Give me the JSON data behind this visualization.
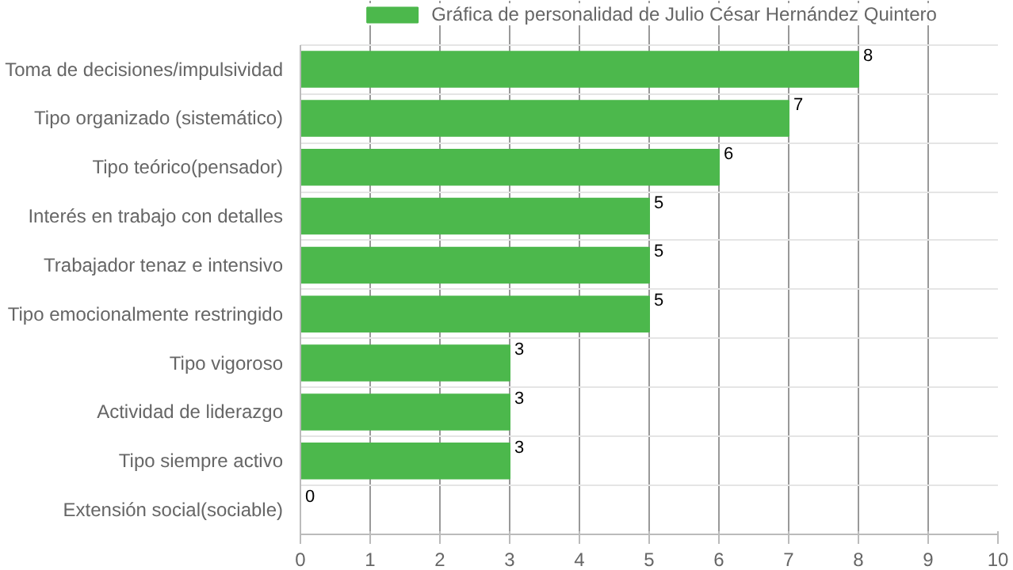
{
  "chart_data": {
    "type": "bar",
    "orientation": "horizontal",
    "categories": [
      "Toma de decisiones/impulsividad",
      "Tipo organizado (sistemático)",
      "Tipo teórico(pensador)",
      "Interés en trabajo con detalles",
      "Trabajador tenaz e intensivo",
      "Tipo emocionalmente restringido",
      "Tipo vigoroso",
      "Actividad de liderazgo",
      "Tipo siempre activo",
      "Extensión social(sociable)"
    ],
    "series": [
      {
        "name": "Gráfica de personalidad de Julio César Hernández Quintero",
        "color": "#4cb84c",
        "values": [
          8,
          7,
          6,
          5,
          5,
          5,
          3,
          3,
          3,
          0
        ]
      }
    ],
    "xlim": [
      0,
      10
    ],
    "xticks": [
      0,
      1,
      2,
      3,
      4,
      5,
      6,
      7,
      8,
      9,
      10
    ],
    "grid": true,
    "legend": "top",
    "data_labels": true
  }
}
